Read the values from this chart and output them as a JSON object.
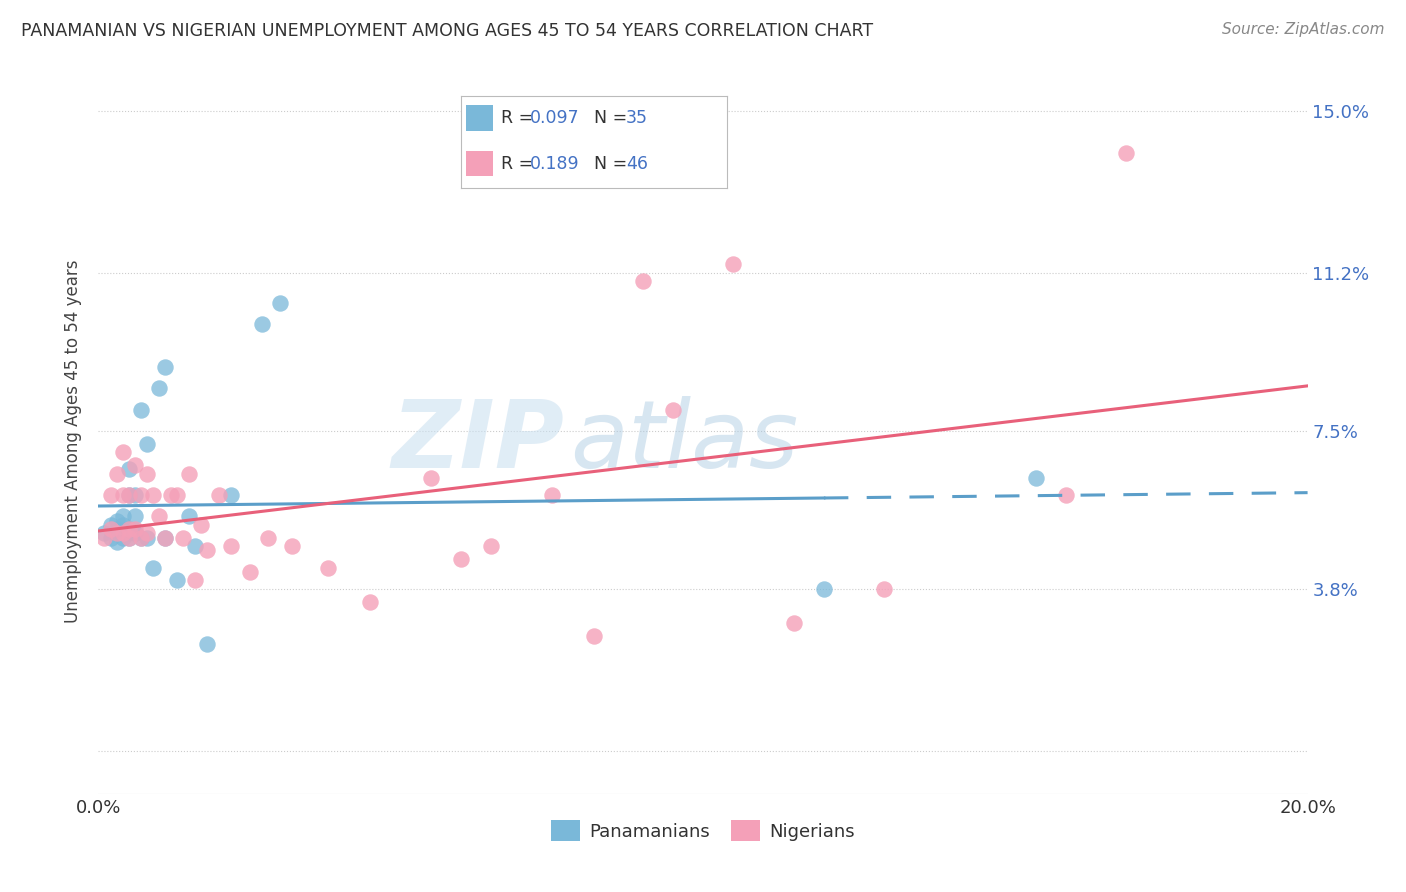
{
  "title": "PANAMANIAN VS NIGERIAN UNEMPLOYMENT AMONG AGES 45 TO 54 YEARS CORRELATION CHART",
  "source": "Source: ZipAtlas.com",
  "ylabel": "Unemployment Among Ages 45 to 54 years",
  "xlim": [
    0.0,
    0.2
  ],
  "ylim": [
    -0.01,
    0.155
  ],
  "xticks": [
    0.0,
    0.04,
    0.08,
    0.12,
    0.16,
    0.2
  ],
  "xticklabels_show": [
    "0.0%",
    "20.0%"
  ],
  "ytick_positions": [
    0.0,
    0.038,
    0.075,
    0.112,
    0.15
  ],
  "ytick_labels": [
    "",
    "3.8%",
    "7.5%",
    "11.2%",
    "15.0%"
  ],
  "panamanian_color": "#7ab8d9",
  "nigerian_color": "#f4a0b8",
  "trend_pan_color": "#5b9ec9",
  "trend_nig_color": "#e8607a",
  "watermark_zip": "ZIP",
  "watermark_atlas": "atlas",
  "pan_scatter_x": [
    0.001,
    0.002,
    0.002,
    0.003,
    0.003,
    0.003,
    0.004,
    0.004,
    0.004,
    0.005,
    0.005,
    0.005,
    0.005,
    0.005,
    0.006,
    0.006,
    0.006,
    0.006,
    0.007,
    0.007,
    0.008,
    0.008,
    0.009,
    0.01,
    0.011,
    0.011,
    0.013,
    0.015,
    0.016,
    0.018,
    0.022,
    0.027,
    0.03,
    0.12,
    0.155
  ],
  "pan_scatter_y": [
    0.051,
    0.05,
    0.053,
    0.049,
    0.052,
    0.054,
    0.05,
    0.053,
    0.055,
    0.05,
    0.051,
    0.052,
    0.06,
    0.066,
    0.051,
    0.051,
    0.055,
    0.06,
    0.05,
    0.08,
    0.05,
    0.072,
    0.043,
    0.085,
    0.09,
    0.05,
    0.04,
    0.055,
    0.048,
    0.025,
    0.06,
    0.1,
    0.105,
    0.038,
    0.064
  ],
  "nig_scatter_x": [
    0.001,
    0.002,
    0.002,
    0.003,
    0.003,
    0.004,
    0.004,
    0.004,
    0.005,
    0.005,
    0.005,
    0.006,
    0.006,
    0.007,
    0.007,
    0.008,
    0.008,
    0.009,
    0.01,
    0.011,
    0.012,
    0.013,
    0.014,
    0.015,
    0.016,
    0.017,
    0.018,
    0.02,
    0.022,
    0.025,
    0.028,
    0.032,
    0.038,
    0.045,
    0.055,
    0.06,
    0.065,
    0.075,
    0.082,
    0.09,
    0.095,
    0.105,
    0.115,
    0.13,
    0.16,
    0.17
  ],
  "nig_scatter_y": [
    0.05,
    0.052,
    0.06,
    0.051,
    0.065,
    0.051,
    0.06,
    0.07,
    0.05,
    0.06,
    0.052,
    0.052,
    0.067,
    0.05,
    0.06,
    0.051,
    0.065,
    0.06,
    0.055,
    0.05,
    0.06,
    0.06,
    0.05,
    0.065,
    0.04,
    0.053,
    0.047,
    0.06,
    0.048,
    0.042,
    0.05,
    0.048,
    0.043,
    0.035,
    0.064,
    0.045,
    0.048,
    0.06,
    0.027,
    0.11,
    0.08,
    0.114,
    0.03,
    0.038,
    0.06,
    0.14
  ],
  "trend_pan_solid_end": 0.12,
  "trend_pan_intercept": 0.048,
  "trend_pan_slope": 0.1,
  "trend_nig_intercept": 0.035,
  "trend_nig_slope": 0.24
}
